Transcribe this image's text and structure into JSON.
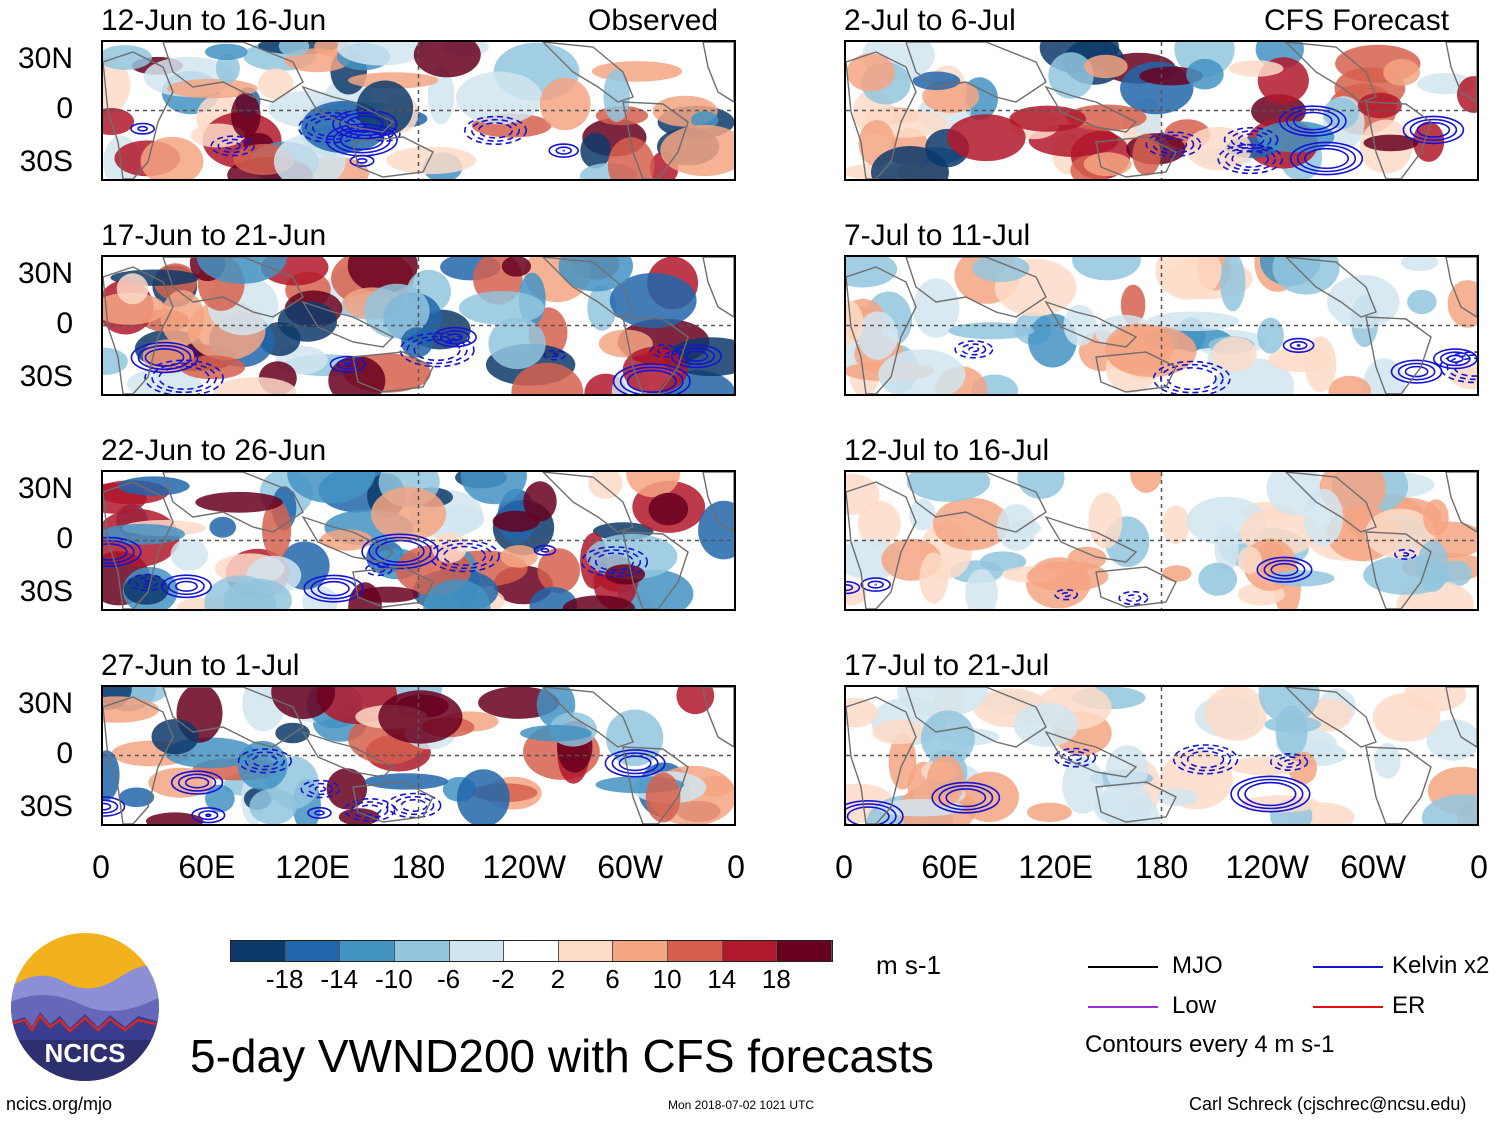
{
  "header": {
    "left_column_label": "Observed",
    "right_column_label": "CFS Forecast"
  },
  "panels_observed": [
    {
      "title": "12-Jun to 16-Jun"
    },
    {
      "title": "17-Jun to 21-Jun"
    },
    {
      "title": "22-Jun to 26-Jun"
    },
    {
      "title": "27-Jun to 1-Jul"
    }
  ],
  "panels_forecast": [
    {
      "title": "2-Jul to 6-Jul"
    },
    {
      "title": "7-Jul to 11-Jul"
    },
    {
      "title": "12-Jul to 16-Jul"
    },
    {
      "title": "17-Jul to 21-Jul"
    }
  ],
  "chart_data": {
    "type": "heatmap",
    "title": "5-day VWND200 with CFS forecasts",
    "variable": "200-hPa meridional wind anomaly",
    "units": "m s-1",
    "lat_ticks": [
      "30N",
      "0",
      "30S"
    ],
    "lon_ticks": [
      "0",
      "60E",
      "120E",
      "180",
      "120W",
      "60W",
      "0"
    ],
    "colorbar": {
      "levels": [
        "-18",
        "-14",
        "-10",
        "-6",
        "-2",
        "2",
        "6",
        "10",
        "14",
        "18"
      ],
      "colors": [
        "#0d3a6b",
        "#2166ac",
        "#4393c3",
        "#92c5de",
        "#d1e5f0",
        "#ffffff",
        "#fddbc7",
        "#f4a582",
        "#d6604d",
        "#b2182b",
        "#67001f"
      ]
    },
    "contour_legend": [
      {
        "label": "MJO",
        "color": "#000000"
      },
      {
        "label": "Kelvin x2",
        "color": "#1414d2"
      },
      {
        "label": "Low",
        "color": "#9b30d9"
      },
      {
        "label": "ER",
        "color": "#e01010"
      }
    ],
    "contour_interval": "Contours every 4 m s-1"
  },
  "footer": {
    "logo_text": "NCICS",
    "url": "ncics.org/mjo",
    "timestamp": "Mon 2018-07-02 1021 UTC",
    "credit": "Carl Schreck (cjschrec@ncsu.edu)"
  }
}
